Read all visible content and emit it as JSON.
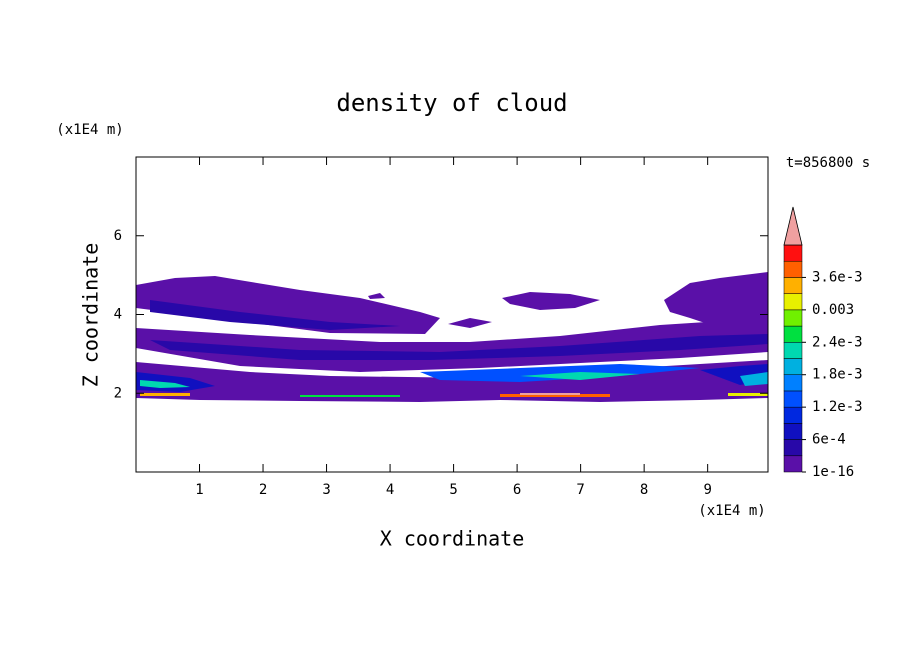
{
  "chart_data": {
    "type": "contour",
    "title": "density of cloud",
    "x_label": "X coordinate",
    "y_label": "Z coordinate",
    "x_unit": "(x1E4 m)",
    "y_unit": "(x1E4 m)",
    "time_label": "t=856800 s",
    "xlim": [
      0,
      9.95
    ],
    "ylim": [
      0,
      8
    ],
    "xticks": [
      1,
      2,
      3,
      4,
      5,
      6,
      7,
      8,
      9
    ],
    "yticks": [
      2,
      4,
      6
    ],
    "colorbar": {
      "levels": [
        1e-16,
        0.0003,
        0.0006,
        0.0009,
        0.0012,
        0.0015,
        0.0018,
        0.0021,
        0.0024,
        0.0027,
        0.003,
        0.0033,
        0.0036,
        0.0039,
        0.0042
      ],
      "colors": [
        "#5a10a8",
        "#2808a8",
        "#1010c0",
        "#0028e0",
        "#0050ff",
        "#0080ff",
        "#00b0e0",
        "#00d8b0",
        "#00e040",
        "#70f000",
        "#e8f000",
        "#ffb000",
        "#ff6000",
        "#ff1010"
      ],
      "extend_color": "#f0a0a0",
      "ticks": [
        {
          "value": 1e-16,
          "label": "1e-16"
        },
        {
          "value": 0.0006,
          "label": "6e-4"
        },
        {
          "value": 0.0012,
          "label": "1.2e-3"
        },
        {
          "value": 0.0018,
          "label": "1.8e-3"
        },
        {
          "value": 0.0024,
          "label": "2.4e-3"
        },
        0.003,
        {
          "value": 0.0036,
          "label": "3.6e-3"
        }
      ]
    }
  }
}
